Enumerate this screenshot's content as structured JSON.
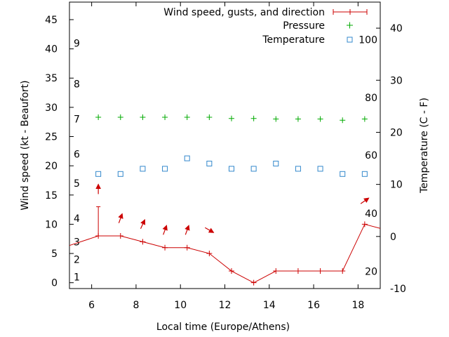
{
  "chart_data": {
    "type": "line",
    "xlabel": "Local time (Europe/Athens)",
    "ylabel_left": "Wind speed (kt - Beaufort)",
    "ylabel_right": "Temperature (C - F)",
    "xlim": [
      5,
      19
    ],
    "ylim_left": [
      -1,
      48
    ],
    "ylim_right": [
      -10,
      45
    ],
    "x_ticks": [
      6,
      8,
      10,
      12,
      14,
      16,
      18
    ],
    "y_left_ticks": [
      0,
      5,
      10,
      15,
      20,
      25,
      30,
      35,
      40,
      45
    ],
    "y_right_ticks": [
      -10,
      0,
      10,
      20,
      30,
      40
    ],
    "beaufort_labels": [
      {
        "text": "1",
        "at": 1
      },
      {
        "text": "2",
        "at": 4
      },
      {
        "text": "3",
        "at": 7
      },
      {
        "text": "4",
        "at": 11
      },
      {
        "text": "5",
        "at": 17
      },
      {
        "text": "6",
        "at": 22
      },
      {
        "text": "7",
        "at": 28
      },
      {
        "text": "8",
        "at": 34
      },
      {
        "text": "9",
        "at": 41
      }
    ],
    "fahrenheit_labels": [
      {
        "text": "20",
        "at": -6.7
      },
      {
        "text": "40",
        "at": 4.4
      },
      {
        "text": "60",
        "at": 15.6
      },
      {
        "text": "80",
        "at": 26.7
      },
      {
        "text": "100",
        "at": 37.8
      }
    ],
    "legend": {
      "position": "top-right",
      "wind": "Wind speed, gusts, and direction",
      "pressure": "Pressure",
      "temperature": "Temperature"
    },
    "series": [
      {
        "name": "Wind speed, gusts, and direction",
        "color": "#cc0000",
        "x": [
          4.7,
          6.3,
          7.3,
          8.3,
          9.3,
          10.3,
          11.3,
          12.3,
          13.3,
          14.3,
          15.3,
          16.3,
          17.3,
          18.3,
          19.0
        ],
        "values": [
          6,
          8,
          8,
          7,
          6,
          6,
          5,
          2,
          0,
          2,
          2,
          2,
          2,
          10,
          9.3
        ],
        "gusts": [
          {
            "x": 6.3,
            "value": 13
          }
        ]
      },
      {
        "name": "Pressure",
        "color": "#00aa00",
        "x": [
          6.3,
          7.3,
          8.3,
          9.3,
          10.3,
          11.3,
          12.3,
          13.3,
          14.3,
          15.3,
          16.3,
          17.3,
          18.3
        ],
        "values": [
          28.3,
          28.3,
          28.3,
          28.3,
          28.3,
          28.3,
          28.1,
          28.1,
          28.0,
          28.0,
          28.0,
          27.8,
          28.0
        ]
      },
      {
        "name": "Temperature",
        "color": "#3388cc",
        "x": [
          6.3,
          7.3,
          8.3,
          9.3,
          10.3,
          11.3,
          12.3,
          13.3,
          14.3,
          15.3,
          16.3,
          17.3,
          18.3
        ],
        "values": [
          12,
          12,
          13,
          13,
          15,
          14,
          13,
          13,
          14,
          13,
          13,
          12,
          12
        ]
      }
    ],
    "direction_arrows": {
      "color": "#cc0000",
      "items": [
        {
          "x": 6.3,
          "y": 16,
          "toward_deg": 0
        },
        {
          "x": 7.3,
          "y": 11,
          "toward_deg": 20
        },
        {
          "x": 8.3,
          "y": 10,
          "toward_deg": 25
        },
        {
          "x": 9.3,
          "y": 9,
          "toward_deg": 20
        },
        {
          "x": 10.3,
          "y": 9,
          "toward_deg": 20
        },
        {
          "x": 11.3,
          "y": 9,
          "toward_deg": 120
        },
        {
          "x": 18.3,
          "y": 14,
          "toward_deg": 55
        }
      ]
    }
  }
}
